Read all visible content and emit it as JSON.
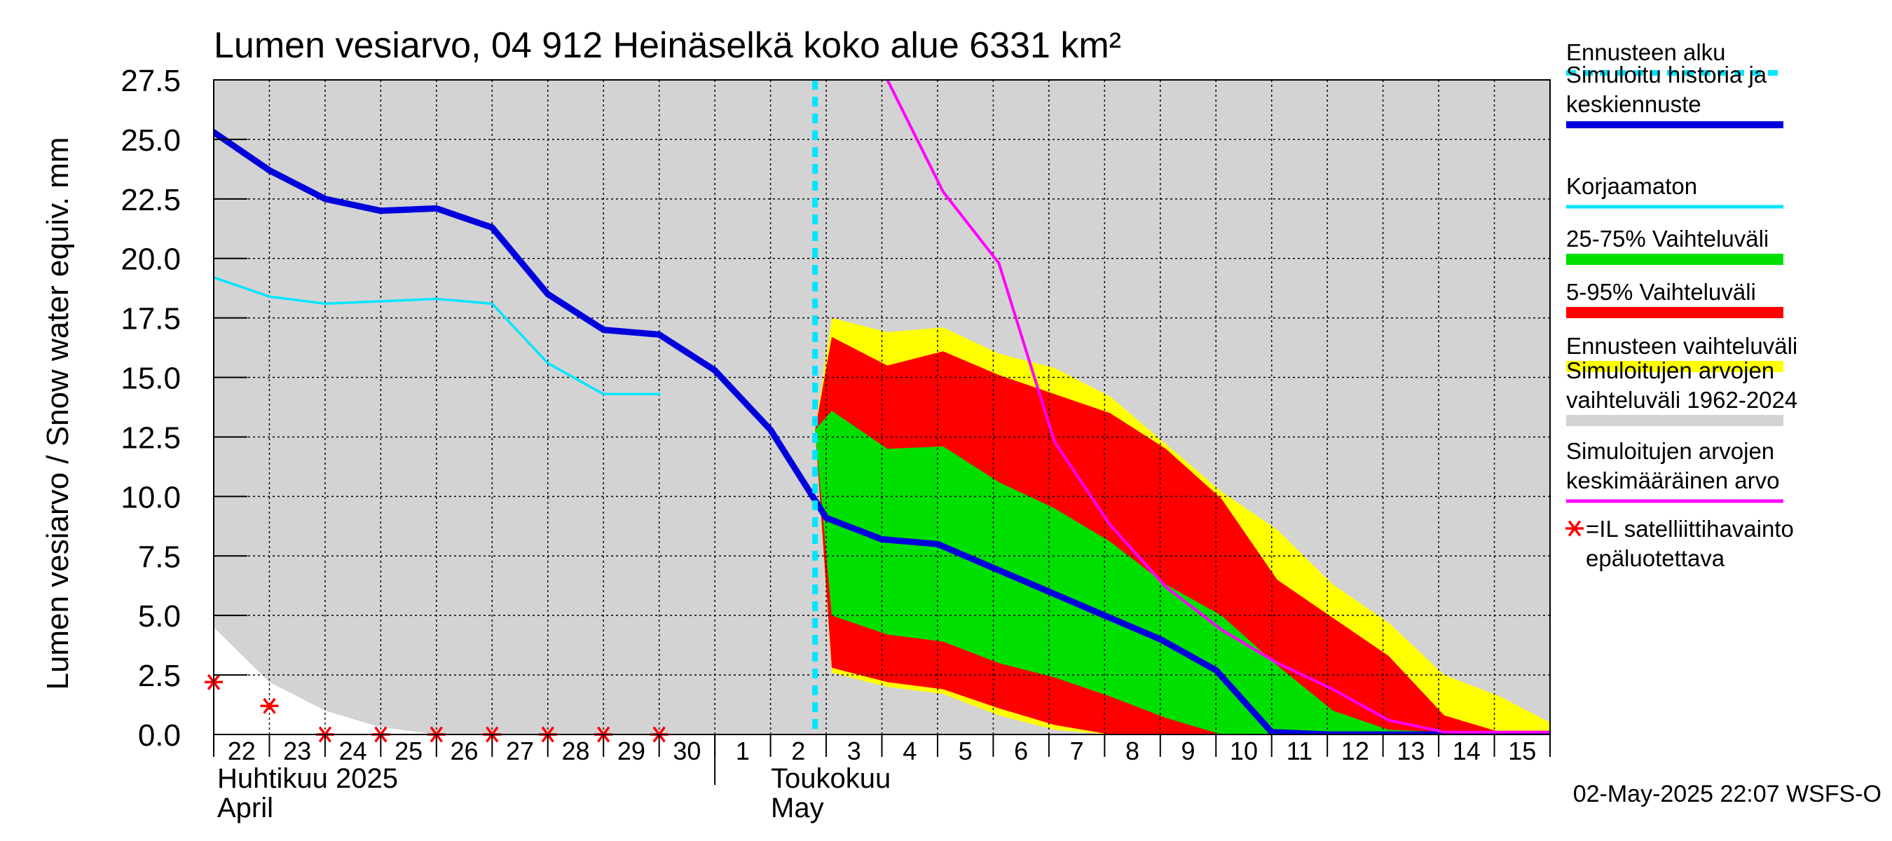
{
  "chart_data": {
    "type": "area",
    "title": "Lumen vesiarvo, 04 912 Heinäselkä koko alue 6331 km²",
    "ylabel": "Lumen vesiarvo / Snow water equiv.    mm",
    "ylim": [
      0,
      27.5
    ],
    "yticks": [
      "0.0",
      "2.5",
      "5.0",
      "7.5",
      "10.0",
      "12.5",
      "15.0",
      "17.5",
      "20.0",
      "22.5",
      "25.0",
      "27.5"
    ],
    "x_day_labels": [
      "22",
      "23",
      "24",
      "25",
      "26",
      "27",
      "28",
      "29",
      "30",
      "1",
      "2",
      "3",
      "4",
      "5",
      "6",
      "7",
      "8",
      "9",
      "10",
      "11",
      "12",
      "13",
      "14",
      "15"
    ],
    "month_labels": {
      "april_fi": "Huhtikuu  2025",
      "april_en": "April",
      "may_fi": "Toukokuu",
      "may_en": "May"
    },
    "forecast_start_x": 10.8,
    "hist_range": {
      "x": [
        0,
        1,
        2,
        3,
        4,
        5,
        6,
        7,
        8,
        9,
        10,
        11,
        12,
        13,
        14,
        15,
        16,
        17,
        18,
        19,
        20,
        21,
        22,
        23,
        24
      ],
      "upper": [
        27.5,
        27.5,
        27.5,
        27.5,
        27.5,
        27.5,
        27.5,
        27.5,
        27.5,
        27.5,
        27.5,
        27.5,
        27.5,
        27.5,
        27.5,
        27.5,
        27.5,
        27.5,
        27.5,
        27.5,
        27.5,
        27.5,
        27.5,
        27.5,
        27.5
      ],
      "lower": [
        4.5,
        2.2,
        1.0,
        0.3,
        0,
        0,
        0,
        0,
        0,
        0,
        0,
        0,
        0,
        0,
        0,
        0,
        0,
        0,
        0,
        0,
        0,
        0,
        0,
        0,
        0
      ]
    },
    "forecast_range": {
      "x": [
        10.8,
        11.1,
        12.1,
        13.1,
        14.1,
        15.1,
        16.1,
        17.1,
        18.1,
        19.1,
        20.1,
        21.1,
        22.1,
        23.1,
        24.0
      ],
      "upper": [
        12.8,
        17.5,
        16.9,
        17.1,
        16.0,
        15.4,
        14.2,
        12.2,
        10.2,
        8.6,
        6.3,
        4.7,
        2.5,
        1.6,
        0.5
      ],
      "lower": [
        12.8,
        2.6,
        2.0,
        1.7,
        0.8,
        0.2,
        0,
        0,
        0,
        0,
        0,
        0,
        0,
        0,
        0
      ]
    },
    "p5_95": {
      "x": [
        10.8,
        11.1,
        12.1,
        13.1,
        14.1,
        15.1,
        16.1,
        17.1,
        18.1,
        19.1,
        20.1,
        21.1,
        22.1,
        23.1,
        24.0
      ],
      "upper": [
        12.8,
        16.7,
        15.5,
        16.1,
        15.1,
        14.3,
        13.5,
        12.0,
        9.9,
        6.5,
        4.9,
        3.3,
        0.8,
        0.1,
        0.1
      ],
      "lower": [
        12.8,
        2.8,
        2.2,
        1.9,
        1.1,
        0.4,
        0,
        0,
        0,
        0,
        0,
        0,
        0,
        0,
        0
      ]
    },
    "p25_75": {
      "x": [
        10.8,
        11.1,
        12.1,
        13.1,
        14.1,
        15.1,
        16.1,
        17.1,
        18.1,
        19.1,
        20.1,
        21.1,
        22.1,
        23.1,
        24.0
      ],
      "upper": [
        12.8,
        13.6,
        12.0,
        12.1,
        10.6,
        9.5,
        8.1,
        6.3,
        5.0,
        2.9,
        1.0,
        0.2,
        0.1,
        0.1,
        0.1
      ],
      "lower": [
        12.8,
        5.0,
        4.2,
        3.9,
        3.0,
        2.4,
        1.6,
        0.7,
        0,
        0,
        0,
        0,
        0,
        0,
        0
      ]
    },
    "series": [
      {
        "name": "Simuloitu historia ja keskiennuste",
        "color": "#0000dd",
        "x": [
          0,
          1,
          2,
          3,
          4,
          5,
          6,
          7,
          8,
          9,
          10,
          11,
          12,
          13,
          14,
          15,
          16,
          17,
          18,
          19,
          20,
          21,
          22,
          23,
          24
        ],
        "values": [
          25.3,
          23.7,
          22.5,
          22.0,
          22.1,
          21.3,
          18.5,
          17.0,
          16.8,
          15.3,
          12.8,
          9.1,
          8.2,
          8.0,
          7.0,
          6.0,
          5.0,
          4.0,
          2.7,
          0.1,
          0,
          0,
          0,
          0,
          0
        ]
      },
      {
        "name": "Korjaamaton",
        "color": "#00e5ff",
        "x": [
          0,
          1,
          2,
          3,
          4,
          5,
          6,
          7,
          8
        ],
        "values": [
          19.2,
          18.4,
          18.1,
          18.2,
          18.3,
          18.1,
          15.6,
          14.3,
          14.3
        ]
      },
      {
        "name": "Simuloitujen arvojen keskimääräinen arvo",
        "color": "#ff00ff",
        "x": [
          12.1,
          13.1,
          14.1,
          15.1,
          16.1,
          17.1,
          18.1,
          19.1,
          20.1,
          21.1,
          22.1,
          23.1,
          24.0
        ],
        "values": [
          27.5,
          22.8,
          19.8,
          12.3,
          8.8,
          6.2,
          4.4,
          3.0,
          1.9,
          0.6,
          0.1,
          0.1,
          0.1
        ]
      }
    ],
    "satellite_points": {
      "x": [
        0,
        1,
        2,
        3,
        4,
        5,
        6,
        7,
        8
      ],
      "values": [
        2.2,
        1.2,
        0,
        0,
        0,
        0,
        0,
        0,
        0
      ]
    },
    "legend": [
      {
        "label": "Ennusteen alku",
        "color": "#00e5ff",
        "style": "dashed"
      },
      {
        "label": "Simuloitu historia ja\nkeskiennuste",
        "color": "#0000dd",
        "style": "line"
      },
      {
        "label": "Korjaamaton",
        "color": "#00e5ff",
        "style": "line"
      },
      {
        "label": "25-75% Vaihteluväli",
        "color": "#00e000",
        "style": "band"
      },
      {
        "label": "5-95% Vaihteluväli",
        "color": "#ff0000",
        "style": "band"
      },
      {
        "label": "Ennusteen vaihteluväli",
        "color": "#ffff00",
        "style": "band"
      },
      {
        "label": "Simuloitujen arvojen\nvaihteluväli 1962-2024",
        "color": "#d3d3d3",
        "style": "band"
      },
      {
        "label": "Simuloitujen arvojen\nkeskimääräinen arvo",
        "color": "#ff00ff",
        "style": "line"
      },
      {
        "label": "=IL satelliittihavainto\nepäluotettava",
        "color": "#ff0000",
        "style": "star"
      }
    ],
    "legend_placement": "right",
    "grid": true,
    "footer": "02-May-2025 22:07 WSFS-O"
  }
}
